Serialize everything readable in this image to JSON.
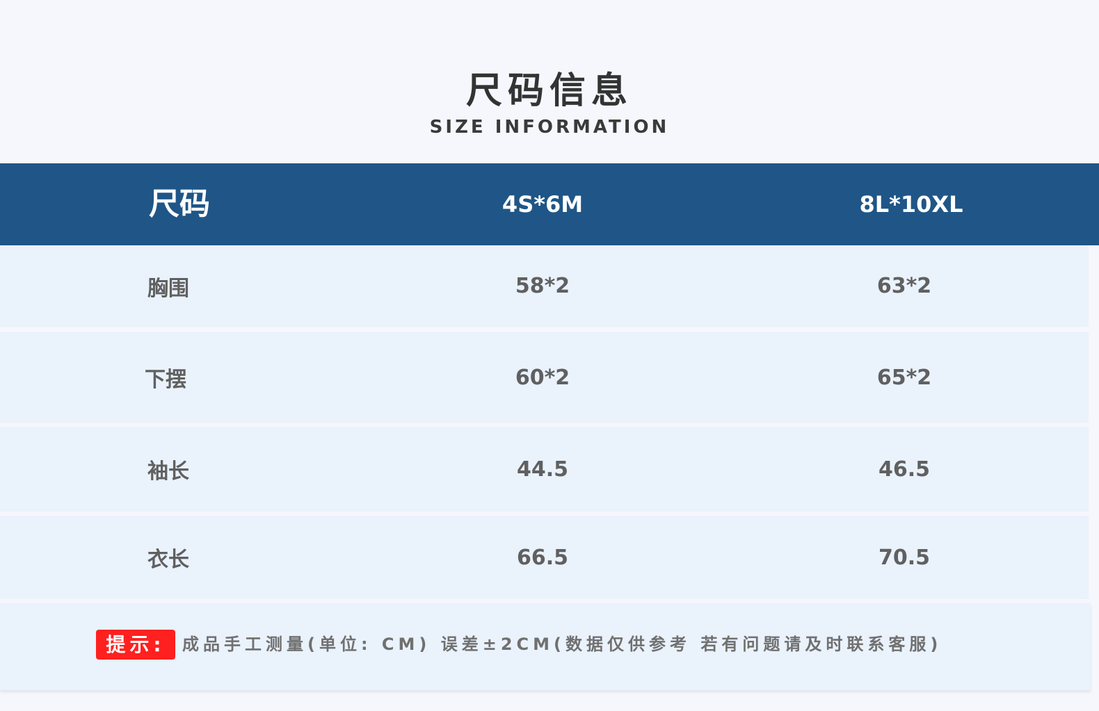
{
  "title": "尺码信息",
  "subtitle": "SIZE INFORMATION",
  "table": {
    "header": [
      "尺码",
      "4S*6M",
      "8L*10XL"
    ],
    "rows": [
      [
        "胸围",
        "58*2",
        "63*2"
      ],
      [
        "下摆",
        "60*2",
        "65*2"
      ],
      [
        "袖长",
        "44.5",
        "46.5"
      ],
      [
        "衣长",
        "66.5",
        "70.5"
      ]
    ]
  },
  "footer": {
    "tag": "提示:",
    "note": "成品手工测量(单位: CM) 误差±2CM(数据仅供参考  若有问题请及时联系客服)"
  },
  "colors": {
    "header_bg": "#1f5687",
    "row_bg": "#eaf2fc",
    "tag_bg": "#ff2020"
  }
}
